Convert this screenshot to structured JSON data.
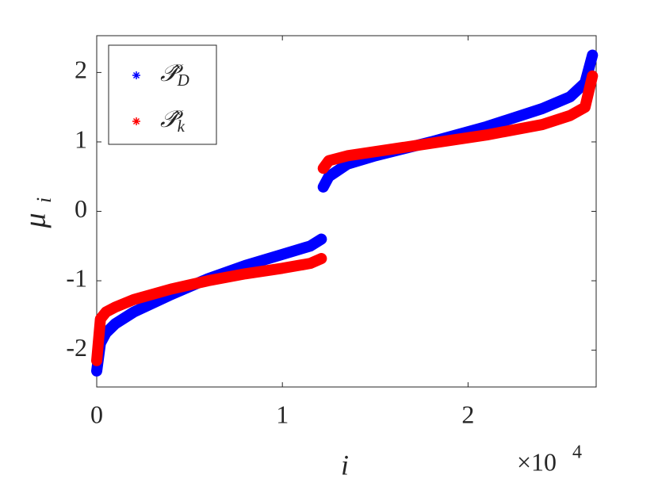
{
  "chart_data": {
    "type": "scatter",
    "xlabel": "i",
    "ylabel": "μ",
    "ylabel_subscript": "i",
    "x_multiplier": "×10",
    "x_multiplier_exponent": "4",
    "x": [
      0,
      200,
      500,
      1000,
      2000,
      4000,
      6000,
      8000,
      10000,
      11500,
      12100,
      12150,
      12200,
      12500,
      13500,
      15000,
      18000,
      21000,
      24000,
      25500,
      26300,
      26700
    ],
    "series": [
      {
        "name": "𝒫̂D",
        "color": "#0000ff",
        "values": [
          -2.3,
          -1.9,
          -1.75,
          -1.62,
          -1.45,
          -1.2,
          -0.97,
          -0.78,
          -0.62,
          -0.5,
          -0.4,
          null,
          0.35,
          0.5,
          0.68,
          0.8,
          1.0,
          1.22,
          1.48,
          1.65,
          1.85,
          2.25
        ]
      },
      {
        "name": "𝒫̂k",
        "color": "#ff0000",
        "values": [
          -2.15,
          -1.55,
          -1.45,
          -1.38,
          -1.27,
          -1.12,
          -1.0,
          -0.9,
          -0.82,
          -0.75,
          -0.68,
          null,
          0.62,
          0.73,
          0.8,
          0.86,
          0.98,
          1.1,
          1.25,
          1.38,
          1.5,
          1.95
        ]
      }
    ],
    "xlim": [
      0,
      26900
    ],
    "xticks": [
      0,
      {
        "value": 10000,
        "label": "1"
      },
      {
        "value": 20000,
        "label": "2"
      }
    ],
    "ylim": [
      -2.53,
      2.53
    ],
    "yticks": [
      -2,
      -1,
      0,
      1,
      2
    ],
    "legend": "top-left"
  }
}
